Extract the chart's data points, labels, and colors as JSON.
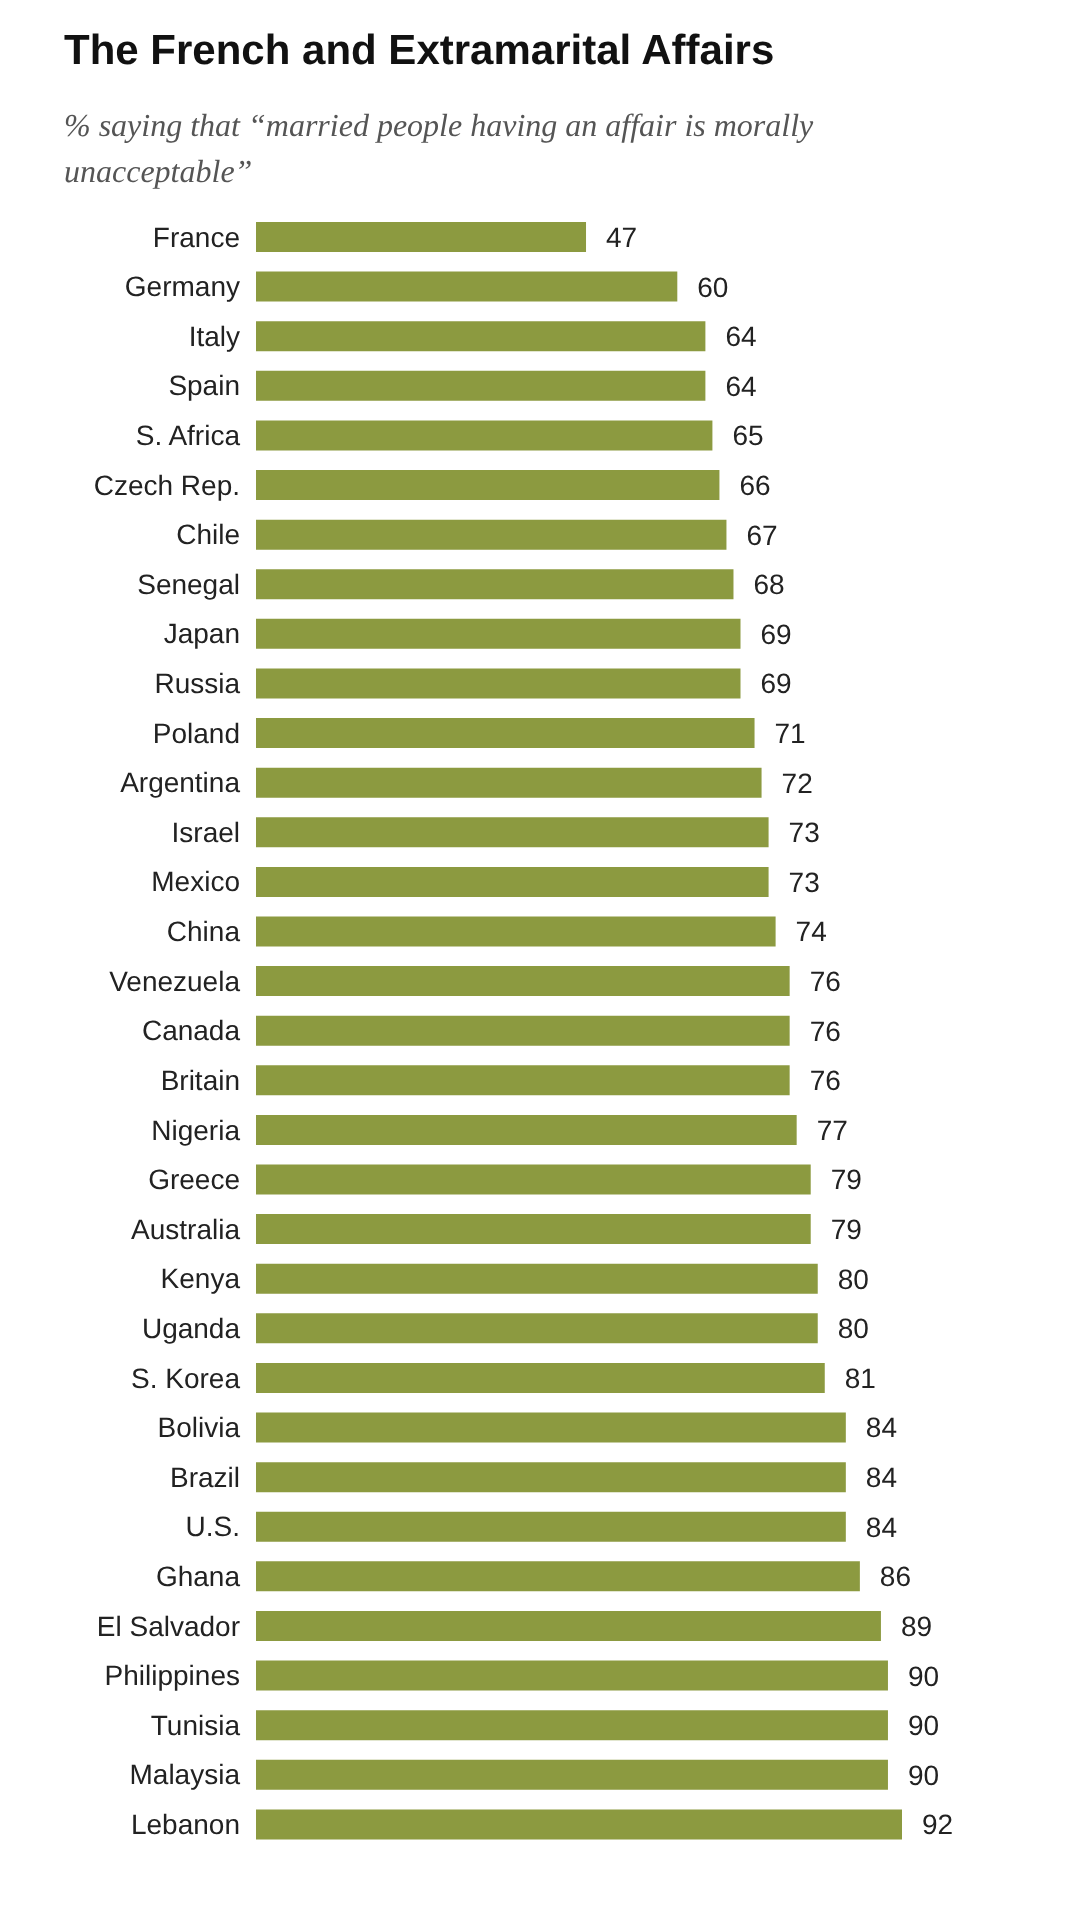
{
  "chart_data": {
    "type": "bar",
    "orientation": "horizontal",
    "title": "The French and Extramarital Affairs",
    "subtitle": "% saying that “married people having an affair is morally unacceptable”",
    "categories": [
      "France",
      "Germany",
      "Italy",
      "Spain",
      "S. Africa",
      "Czech Rep.",
      "Chile",
      "Senegal",
      "Japan",
      "Russia",
      "Poland",
      "Argentina",
      "Israel",
      "Mexico",
      "China",
      "Venezuela",
      "Canada",
      "Britain",
      "Nigeria",
      "Greece",
      "Australia",
      "Kenya",
      "Uganda",
      "S. Korea",
      "Bolivia",
      "Brazil",
      "U.S.",
      "Ghana",
      "El Salvador",
      "Philippines",
      "Tunisia",
      "Malaysia",
      "Lebanon"
    ],
    "values": [
      47,
      60,
      64,
      64,
      65,
      66,
      67,
      68,
      69,
      69,
      71,
      72,
      73,
      73,
      74,
      76,
      76,
      76,
      77,
      79,
      79,
      80,
      80,
      81,
      84,
      84,
      84,
      86,
      89,
      90,
      90,
      90,
      92
    ],
    "color": "#8c9a40",
    "data_labels": true
  }
}
